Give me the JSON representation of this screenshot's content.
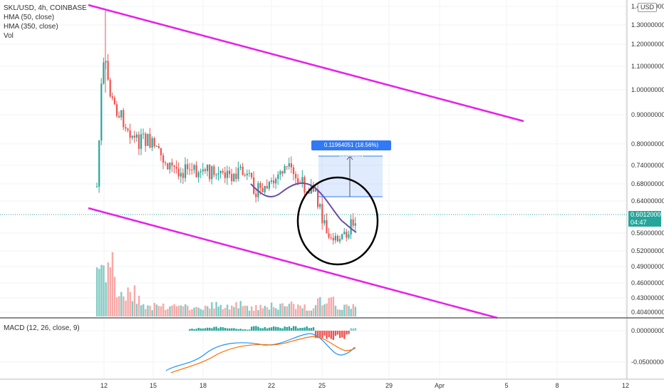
{
  "legend": {
    "symbol": "SKL/USD, 4h, COINBASE",
    "hma50": "HMA (50, close)",
    "hma350": "HMA (350, close)",
    "vol": "Vol",
    "macd": "MACD (12, 26, close, 9)"
  },
  "currency_button": "USD",
  "last_price": "0.60120000",
  "countdown": "04:47",
  "measure_label": "0.11964051 (18.56%) 11964051",
  "colors": {
    "up": "#26a69a",
    "down": "#ef5350",
    "channel": "#e91ee9",
    "hma": "#6a4ea3",
    "macd": "#2196f3",
    "signal": "#ff6d00",
    "measure": "#3179f5"
  },
  "chart_data": {
    "type": "candlestick",
    "price_axis": {
      "ticks": [
        "1.40000000",
        "1.30000000",
        "1.20000000",
        "1.10000000",
        "1.00000000",
        "0.90000000",
        "0.80000000",
        "0.74000000",
        "0.68000000",
        "0.64000000",
        "0.56000000",
        "0.52000000",
        "0.49000000",
        "0.46000000",
        "0.43000000",
        "0.40400000"
      ],
      "scale": "log"
    },
    "macd_axis": {
      "ticks": [
        "0.00000000",
        "-0.05000000"
      ]
    },
    "time_axis": {
      "ticks": [
        "12",
        "15",
        "18",
        "22",
        "25",
        "29",
        "Apr",
        "5",
        "8",
        "12"
      ]
    },
    "series": [
      {
        "name": "HMA (50, close)"
      },
      {
        "name": "HMA (350, close)"
      },
      {
        "name": "Vol"
      },
      {
        "name": "MACD (12, 26, close, 9)"
      }
    ],
    "annotations": [
      "descending channel upper line",
      "descending channel lower line",
      "circle around recent lows",
      "price range measurement"
    ]
  }
}
